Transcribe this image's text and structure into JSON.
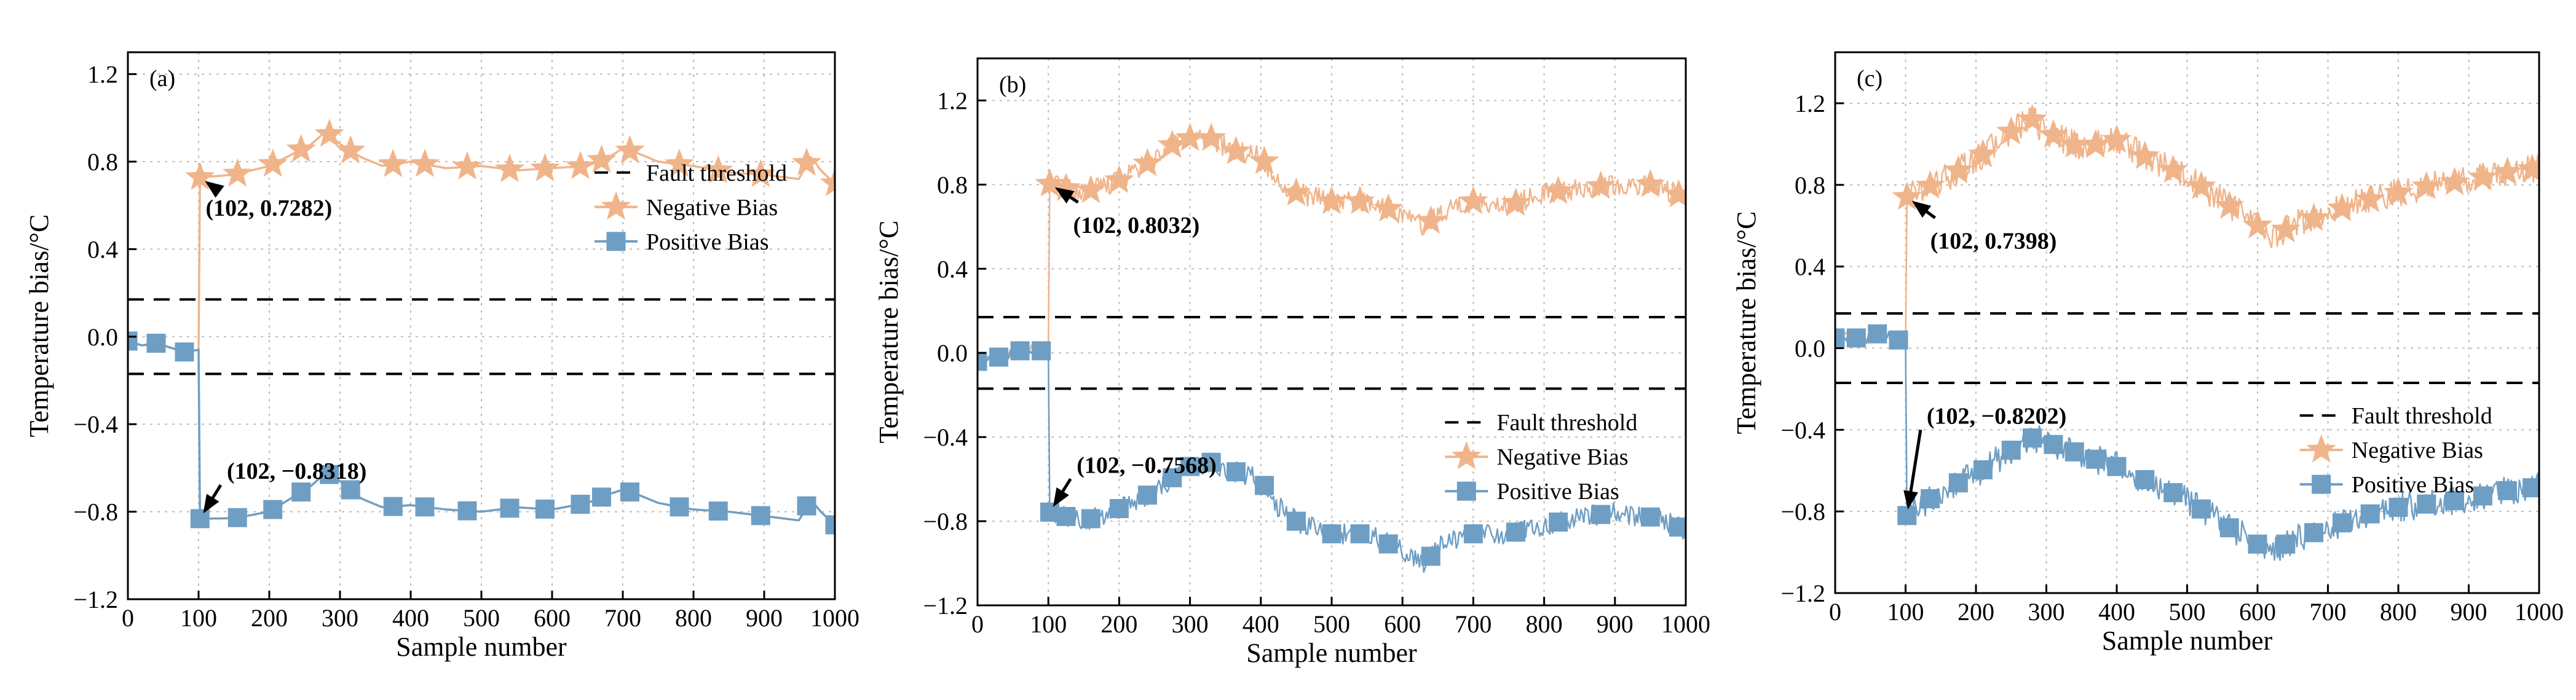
{
  "colors": {
    "negative": "#F0B48A",
    "positive": "#6E9EC4",
    "threshold": "#000000",
    "grid": "#BDBDBD"
  },
  "chart_data": [
    {
      "type": "line",
      "panel_label": "(a)",
      "xlabel": "Sample number",
      "ylabel": "Temperature bias/°C",
      "xlim": [
        0,
        1000
      ],
      "ylim": [
        -1.2,
        1.3
      ],
      "xticks": [
        0,
        100,
        200,
        300,
        400,
        500,
        600,
        700,
        800,
        900,
        1000
      ],
      "xtick_labels": [
        "0",
        "100",
        "200",
        "300",
        "400",
        "500",
        "600",
        "700",
        "800",
        "900",
        "1000"
      ],
      "yticks": [
        -1.2,
        -0.8,
        -0.4,
        0.0,
        0.4,
        0.8,
        1.2
      ],
      "ytick_labels": [
        "−1.2",
        "−0.8",
        "−0.4",
        "0.0",
        "0.4",
        "0.8",
        "1.2"
      ],
      "thresholds": [
        0.17,
        -0.17
      ],
      "legend": {
        "position": "center-right",
        "threshold_label": "Fault threshold",
        "negative_label": "Negative Bias",
        "positive_label": "Positive Bias"
      },
      "noise": 0.0,
      "series": [
        {
          "name": "Negative Bias",
          "color_key": "negative",
          "marker": "star",
          "x": [
            102,
            150,
            200,
            230,
            260,
            280,
            300,
            330,
            360,
            400,
            450,
            500,
            550,
            600,
            650,
            680,
            700,
            720,
            750,
            800,
            850,
            900,
            950,
            965,
            980,
            1000
          ],
          "y": [
            0.7282,
            0.74,
            0.78,
            0.83,
            0.88,
            0.94,
            0.88,
            0.82,
            0.78,
            0.8,
            0.77,
            0.78,
            0.76,
            0.77,
            0.78,
            0.82,
            0.86,
            0.84,
            0.8,
            0.78,
            0.75,
            0.74,
            0.72,
            0.83,
            0.76,
            0.7
          ],
          "marker_x": [
            102,
            155,
            205,
            245,
            285,
            315,
            375,
            420,
            480,
            540,
            590,
            640,
            670,
            710,
            780,
            835,
            895,
            960,
            1000
          ]
        },
        {
          "name": "Positive Bias",
          "color_key": "positive",
          "marker": "square",
          "x": [
            102,
            150,
            200,
            230,
            260,
            280,
            300,
            330,
            360,
            400,
            450,
            500,
            550,
            600,
            650,
            680,
            700,
            720,
            750,
            800,
            850,
            900,
            950,
            965,
            980,
            1000
          ],
          "y": [
            -0.8318,
            -0.83,
            -0.8,
            -0.74,
            -0.68,
            -0.62,
            -0.66,
            -0.74,
            -0.78,
            -0.77,
            -0.79,
            -0.8,
            -0.78,
            -0.79,
            -0.76,
            -0.72,
            -0.7,
            -0.72,
            -0.76,
            -0.79,
            -0.8,
            -0.82,
            -0.84,
            -0.74,
            -0.8,
            -0.86
          ],
          "marker_x": [
            102,
            155,
            205,
            245,
            285,
            315,
            375,
            420,
            480,
            540,
            590,
            640,
            670,
            710,
            780,
            835,
            895,
            960,
            1000
          ]
        }
      ],
      "pre_fault": {
        "x": [
          0,
          20,
          40,
          60,
          80,
          100
        ],
        "y": [
          -0.02,
          -0.04,
          -0.03,
          -0.05,
          -0.07,
          -0.06
        ],
        "marker_x": [
          0,
          40,
          80
        ]
      },
      "annotations": [
        {
          "text": "(102, 0.7282)",
          "point": [
            102,
            0.7282
          ],
          "text_pos": [
            110,
            0.62
          ],
          "text_anchor": "start"
        },
        {
          "text": "(102, −0.8318)",
          "point": [
            102,
            -0.8318
          ],
          "text_pos": [
            140,
            -0.65
          ],
          "text_anchor": "start"
        }
      ]
    },
    {
      "type": "line",
      "panel_label": "(b)",
      "xlabel": "Sample number",
      "ylabel": "Temperature bias/°C",
      "xlim": [
        0,
        1000
      ],
      "ylim": [
        -1.2,
        1.4
      ],
      "xticks": [
        0,
        100,
        200,
        300,
        400,
        500,
        600,
        700,
        800,
        900,
        1000
      ],
      "xtick_labels": [
        "0",
        "100",
        "200",
        "300",
        "400",
        "500",
        "600",
        "700",
        "800",
        "900",
        "1000"
      ],
      "yticks": [
        -1.2,
        -0.8,
        -0.4,
        0.0,
        0.4,
        0.8,
        1.2
      ],
      "ytick_labels": [
        "−1.2",
        "−0.8",
        "−0.4",
        "0.0",
        "0.4",
        "0.8",
        "1.2"
      ],
      "thresholds": [
        0.17,
        -0.17
      ],
      "legend": {
        "position": "center-right",
        "threshold_label": "Fault threshold",
        "negative_label": "Negative Bias",
        "positive_label": "Positive Bias"
      },
      "noise": 0.05,
      "series": [
        {
          "name": "Negative Bias",
          "color_key": "negative",
          "marker": "star",
          "x": [
            102,
            150,
            200,
            250,
            280,
            300,
            330,
            360,
            400,
            420,
            450,
            500,
            550,
            600,
            630,
            660,
            700,
            750,
            800,
            850,
            900,
            950,
            1000
          ],
          "y": [
            0.8032,
            0.76,
            0.82,
            0.92,
            1.0,
            1.02,
            1.02,
            0.96,
            0.94,
            0.82,
            0.76,
            0.72,
            0.72,
            0.66,
            0.6,
            0.68,
            0.72,
            0.7,
            0.76,
            0.78,
            0.8,
            0.8,
            0.74
          ],
          "marker_x": [
            102,
            125,
            160,
            200,
            240,
            275,
            300,
            330,
            365,
            405,
            450,
            500,
            540,
            580,
            640,
            700,
            760,
            820,
            880,
            950,
            990
          ]
        },
        {
          "name": "Positive Bias",
          "color_key": "positive",
          "marker": "square",
          "x": [
            102,
            150,
            200,
            250,
            280,
            300,
            330,
            360,
            400,
            420,
            450,
            500,
            550,
            600,
            630,
            660,
            700,
            750,
            800,
            850,
            900,
            950,
            1000
          ],
          "y": [
            -0.7568,
            -0.8,
            -0.74,
            -0.66,
            -0.58,
            -0.54,
            -0.52,
            -0.56,
            -0.6,
            -0.72,
            -0.8,
            -0.86,
            -0.86,
            -0.94,
            -1.0,
            -0.9,
            -0.86,
            -0.86,
            -0.82,
            -0.78,
            -0.76,
            -0.78,
            -0.84
          ],
          "marker_x": [
            102,
            125,
            160,
            200,
            240,
            275,
            300,
            330,
            365,
            405,
            450,
            500,
            540,
            580,
            640,
            700,
            760,
            820,
            880,
            950,
            990
          ]
        }
      ],
      "pre_fault": {
        "x": [
          0,
          20,
          40,
          60,
          80,
          100
        ],
        "y": [
          -0.04,
          -0.03,
          -0.01,
          0.01,
          0.02,
          0.0
        ],
        "marker_x": [
          0,
          30,
          60,
          90
        ]
      },
      "annotations": [
        {
          "text": "(102, 0.8032)",
          "point": [
            102,
            0.8032
          ],
          "text_pos": [
            135,
            0.64
          ],
          "text_anchor": "start"
        },
        {
          "text": "(102, −0.7568)",
          "point": [
            102,
            -0.7568
          ],
          "text_pos": [
            140,
            -0.57
          ],
          "text_anchor": "start"
        }
      ]
    },
    {
      "type": "line",
      "panel_label": "(c)",
      "xlabel": "Sample number",
      "ylabel": "Temperature bias/°C",
      "xlim": [
        0,
        1000
      ],
      "ylim": [
        -1.2,
        1.45
      ],
      "xticks": [
        0,
        100,
        200,
        300,
        400,
        500,
        600,
        700,
        800,
        900,
        1000
      ],
      "xtick_labels": [
        "0",
        "100",
        "200",
        "300",
        "400",
        "500",
        "600",
        "700",
        "800",
        "900",
        "1000"
      ],
      "yticks": [
        -1.2,
        -0.8,
        -0.4,
        0.0,
        0.4,
        0.8,
        1.2
      ],
      "ytick_labels": [
        "−1.2",
        "−0.8",
        "−0.4",
        "0.0",
        "0.4",
        "0.8",
        "1.2"
      ],
      "thresholds": [
        0.17,
        -0.17
      ],
      "legend": {
        "position": "center-right",
        "threshold_label": "Fault threshold",
        "negative_label": "Negative Bias",
        "positive_label": "Positive Bias"
      },
      "noise": 0.07,
      "series": [
        {
          "name": "Negative Bias",
          "color_key": "negative",
          "marker": "star",
          "x": [
            102,
            150,
            200,
            250,
            280,
            300,
            350,
            400,
            450,
            500,
            550,
            600,
            620,
            650,
            700,
            750,
            800,
            850,
            900,
            950,
            1000
          ],
          "y": [
            0.7398,
            0.82,
            0.92,
            1.06,
            1.12,
            1.06,
            0.98,
            1.02,
            0.92,
            0.84,
            0.72,
            0.6,
            0.54,
            0.6,
            0.66,
            0.72,
            0.76,
            0.8,
            0.82,
            0.86,
            0.88
          ],
          "marker_x": [
            102,
            135,
            175,
            210,
            250,
            280,
            310,
            340,
            370,
            400,
            440,
            480,
            520,
            560,
            600,
            640,
            680,
            720,
            760,
            800,
            840,
            880,
            920,
            955,
            990
          ]
        },
        {
          "name": "Positive Bias",
          "color_key": "positive",
          "marker": "square",
          "x": [
            102,
            150,
            200,
            250,
            280,
            300,
            350,
            400,
            450,
            500,
            550,
            600,
            620,
            650,
            700,
            750,
            800,
            850,
            900,
            950,
            1000
          ],
          "y": [
            -0.8202,
            -0.7,
            -0.62,
            -0.5,
            -0.44,
            -0.46,
            -0.52,
            -0.58,
            -0.66,
            -0.74,
            -0.86,
            -0.96,
            -1.0,
            -0.94,
            -0.88,
            -0.82,
            -0.78,
            -0.76,
            -0.74,
            -0.7,
            -0.68
          ],
          "marker_x": [
            102,
            135,
            175,
            210,
            250,
            280,
            310,
            340,
            370,
            400,
            440,
            480,
            520,
            560,
            600,
            640,
            680,
            720,
            760,
            800,
            840,
            880,
            920,
            955,
            990
          ]
        }
      ],
      "pre_fault": {
        "x": [
          0,
          20,
          40,
          60,
          80,
          100
        ],
        "y": [
          0.05,
          0.06,
          0.04,
          0.07,
          0.05,
          0.03
        ],
        "marker_x": [
          0,
          30,
          60,
          90
        ]
      },
      "annotations": [
        {
          "text": "(102, 0.7398)",
          "point": [
            102,
            0.7398
          ],
          "text_pos": [
            135,
            0.56
          ],
          "text_anchor": "start"
        },
        {
          "text": "(102, −0.8202)",
          "point": [
            102,
            -0.8202
          ],
          "text_pos": [
            130,
            -0.37
          ],
          "text_anchor": "start"
        }
      ]
    }
  ]
}
